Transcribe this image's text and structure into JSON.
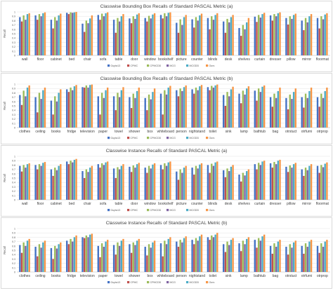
{
  "colors": {
    "Gupta13": "#4472c4",
    "CPMC": "#c0504d",
    "CPMCDD": "#9bbb59",
    "MCG": "#8064a2",
    "MCGDD": "#4bacc6",
    "Ours": "#f79646"
  },
  "chart_data": [
    {
      "type": "bar",
      "title": "Classwise Bounding Box Recalls of Standard PASCAL Metric (a)",
      "ylabel": "Recall",
      "ylim": [
        0,
        1
      ],
      "yticks": [
        "0",
        "0.1",
        "0.2",
        "0.3",
        "0.4",
        "0.5",
        "0.6",
        "0.7",
        "0.8",
        "0.9",
        "1"
      ],
      "grid": true,
      "legend": "bottom",
      "categories": [
        "wall",
        "floor",
        "cabinet",
        "bed",
        "chair",
        "sofa",
        "table",
        "door",
        "window",
        "bookshelf",
        "picture",
        "counter",
        "blinds",
        "desk",
        "shelves",
        "curtain",
        "dresser",
        "pillow",
        "mirror",
        "floormat"
      ],
      "series": [
        {
          "name": "Gupta13",
          "values": [
            0.88,
            0.92,
            0.82,
            0.98,
            0.73,
            0.93,
            0.82,
            0.85,
            0.86,
            0.93,
            0.75,
            0.83,
            0.86,
            0.78,
            0.63,
            0.89,
            0.92,
            0.86,
            0.8,
            0.86
          ]
        },
        {
          "name": "CPMC",
          "values": [
            0.78,
            0.82,
            0.62,
            0.95,
            0.54,
            0.82,
            0.52,
            0.74,
            0.78,
            0.85,
            0.52,
            0.64,
            0.6,
            0.52,
            0.45,
            0.77,
            0.8,
            0.71,
            0.58,
            0.62
          ]
        },
        {
          "name": "CPMCDD",
          "values": [
            0.92,
            0.95,
            0.88,
            0.99,
            0.8,
            0.96,
            0.86,
            0.9,
            0.91,
            0.97,
            0.83,
            0.88,
            0.9,
            0.84,
            0.7,
            0.93,
            0.95,
            0.9,
            0.86,
            0.9
          ]
        },
        {
          "name": "MCG",
          "values": [
            0.82,
            0.9,
            0.8,
            0.98,
            0.74,
            0.9,
            0.78,
            0.84,
            0.85,
            0.9,
            0.7,
            0.8,
            0.82,
            0.76,
            0.6,
            0.87,
            0.9,
            0.84,
            0.76,
            0.83
          ]
        },
        {
          "name": "MCGDD",
          "values": [
            0.95,
            0.97,
            0.92,
            0.99,
            0.85,
            0.97,
            0.9,
            0.94,
            0.94,
            0.98,
            0.88,
            0.92,
            0.93,
            0.88,
            0.76,
            0.95,
            0.97,
            0.93,
            0.9,
            0.94
          ]
        },
        {
          "name": "Ours",
          "values": [
            0.97,
            0.99,
            0.96,
            1.0,
            0.92,
            0.99,
            0.95,
            0.97,
            0.97,
            0.99,
            0.93,
            0.96,
            0.97,
            0.93,
            0.86,
            0.98,
            0.99,
            0.96,
            0.95,
            0.97
          ]
        }
      ]
    },
    {
      "type": "bar",
      "title": "Classwise Bounding Box Recalls of Standard PASCAL Metric (b)",
      "ylabel": "Recall",
      "ylim": [
        0,
        1
      ],
      "yticks": [
        "0",
        "0.1",
        "0.2",
        "0.3",
        "0.4",
        "0.5",
        "0.6",
        "0.7",
        "0.8",
        "0.9",
        "1"
      ],
      "grid": true,
      "legend": "bottom",
      "categories": [
        "clothes",
        "ceiling",
        "books",
        "fridge",
        "television",
        "paper",
        "towel",
        "shower",
        "box",
        "whiteboard",
        "person",
        "nightstand",
        "toilet",
        "sink",
        "lamp",
        "bathtub",
        "bag",
        "otrstuct",
        "otrfurni",
        "otrprop"
      ],
      "series": [
        {
          "name": "Gupta13",
          "values": [
            0.75,
            0.7,
            0.62,
            0.88,
            0.93,
            0.72,
            0.72,
            0.7,
            0.68,
            0.78,
            0.86,
            0.88,
            0.93,
            0.75,
            0.78,
            0.85,
            0.7,
            0.68,
            0.7,
            0.7
          ]
        },
        {
          "name": "CPMC",
          "values": [
            0.52,
            0.35,
            0.3,
            0.82,
            0.92,
            0.3,
            0.4,
            0.45,
            0.4,
            0.3,
            0.72,
            0.78,
            0.86,
            0.5,
            0.56,
            0.62,
            0.48,
            0.42,
            0.46,
            0.48
          ]
        },
        {
          "name": "CPMCDD",
          "values": [
            0.85,
            0.8,
            0.72,
            0.92,
            0.97,
            0.8,
            0.8,
            0.78,
            0.76,
            0.86,
            0.9,
            0.92,
            0.96,
            0.82,
            0.85,
            0.9,
            0.78,
            0.76,
            0.78,
            0.78
          ]
        },
        {
          "name": "MCG",
          "values": [
            0.72,
            0.66,
            0.6,
            0.86,
            0.92,
            0.68,
            0.7,
            0.68,
            0.65,
            0.76,
            0.84,
            0.86,
            0.92,
            0.72,
            0.76,
            0.82,
            0.68,
            0.66,
            0.68,
            0.68
          ]
        },
        {
          "name": "MCGDD",
          "values": [
            0.92,
            0.86,
            0.8,
            0.95,
            0.98,
            0.86,
            0.86,
            0.84,
            0.82,
            0.92,
            0.93,
            0.95,
            0.97,
            0.88,
            0.9,
            0.94,
            0.84,
            0.82,
            0.84,
            0.84
          ]
        },
        {
          "name": "Ours",
          "values": [
            0.97,
            0.92,
            0.88,
            0.98,
            0.99,
            0.92,
            0.93,
            0.92,
            0.9,
            0.96,
            0.97,
            0.98,
            0.99,
            0.94,
            0.95,
            0.97,
            0.92,
            0.9,
            0.92,
            0.92
          ]
        }
      ]
    },
    {
      "type": "bar",
      "title": "Classwise Instance Recalls of Standard PASCAL Metric (a)",
      "ylabel": "Recall",
      "ylim": [
        0,
        1
      ],
      "yticks": [
        "0",
        "0.1",
        "0.2",
        "0.3",
        "0.4",
        "0.5",
        "0.6",
        "0.7",
        "0.8",
        "0.9",
        "1"
      ],
      "grid": true,
      "legend": "bottom",
      "categories": [
        "wall",
        "floor",
        "cabinet",
        "bed",
        "chair",
        "sofa",
        "table",
        "door",
        "window",
        "bookshelf",
        "picture",
        "counter",
        "blinds",
        "desk",
        "shelves",
        "curtain",
        "dresser",
        "pillow",
        "mirror",
        "floormat"
      ],
      "series": [
        {
          "name": "Gupta13",
          "values": [
            0.78,
            0.8,
            0.7,
            0.88,
            0.66,
            0.82,
            0.72,
            0.76,
            0.74,
            0.8,
            0.65,
            0.74,
            0.8,
            0.68,
            0.58,
            0.82,
            0.84,
            0.76,
            0.7,
            0.78
          ]
        },
        {
          "name": "CPMC",
          "values": [
            0.65,
            0.7,
            0.55,
            0.82,
            0.5,
            0.74,
            0.5,
            0.64,
            0.62,
            0.7,
            0.46,
            0.58,
            0.62,
            0.52,
            0.42,
            0.7,
            0.74,
            0.64,
            0.55,
            0.62
          ]
        },
        {
          "name": "CPMCDD",
          "values": [
            0.8,
            0.82,
            0.74,
            0.9,
            0.7,
            0.84,
            0.75,
            0.79,
            0.78,
            0.84,
            0.7,
            0.78,
            0.83,
            0.72,
            0.62,
            0.85,
            0.87,
            0.79,
            0.74,
            0.8
          ]
        },
        {
          "name": "MCG",
          "values": [
            0.74,
            0.78,
            0.68,
            0.86,
            0.64,
            0.8,
            0.7,
            0.74,
            0.72,
            0.78,
            0.62,
            0.72,
            0.78,
            0.66,
            0.56,
            0.8,
            0.82,
            0.74,
            0.68,
            0.75
          ]
        },
        {
          "name": "MCGDD",
          "values": [
            0.82,
            0.85,
            0.78,
            0.92,
            0.74,
            0.86,
            0.78,
            0.82,
            0.81,
            0.86,
            0.74,
            0.81,
            0.86,
            0.76,
            0.66,
            0.88,
            0.9,
            0.82,
            0.78,
            0.83
          ]
        },
        {
          "name": "Ours",
          "values": [
            0.84,
            0.87,
            0.82,
            0.94,
            0.78,
            0.88,
            0.82,
            0.85,
            0.84,
            0.88,
            0.78,
            0.84,
            0.88,
            0.8,
            0.7,
            0.9,
            0.92,
            0.85,
            0.82,
            0.86
          ]
        }
      ]
    },
    {
      "type": "bar",
      "title": "Classwise Instance Recalls of Standard PASCAL Metric (b)",
      "ylabel": "Recall",
      "ylim": [
        0,
        1
      ],
      "yticks": [
        "0",
        "0.1",
        "0.2",
        "0.3",
        "0.4",
        "0.5",
        "0.6",
        "0.7",
        "0.8",
        "0.9",
        "1"
      ],
      "grid": true,
      "legend": "bottom",
      "categories": [
        "clothes",
        "ceiling",
        "books",
        "fridge",
        "television",
        "paper",
        "towel",
        "shower",
        "box",
        "whiteboard",
        "person",
        "nightstand",
        "toilet",
        "sink",
        "lamp",
        "bathtub",
        "bag",
        "otrstuct",
        "otrfurni",
        "otrprop"
      ],
      "series": [
        {
          "name": "Gupta13",
          "values": [
            0.62,
            0.58,
            0.55,
            0.72,
            0.8,
            0.6,
            0.62,
            0.64,
            0.58,
            0.66,
            0.7,
            0.74,
            0.8,
            0.64,
            0.66,
            0.74,
            0.6,
            0.58,
            0.6,
            0.6
          ]
        },
        {
          "name": "CPMC",
          "values": [
            0.44,
            0.36,
            0.3,
            0.64,
            0.78,
            0.34,
            0.4,
            0.44,
            0.38,
            0.36,
            0.58,
            0.64,
            0.74,
            0.46,
            0.48,
            0.56,
            0.42,
            0.4,
            0.42,
            0.44
          ]
        },
        {
          "name": "CPMCDD",
          "values": [
            0.68,
            0.64,
            0.6,
            0.76,
            0.84,
            0.66,
            0.68,
            0.68,
            0.64,
            0.72,
            0.74,
            0.78,
            0.84,
            0.7,
            0.72,
            0.78,
            0.66,
            0.64,
            0.66,
            0.66
          ]
        },
        {
          "name": "MCG",
          "values": [
            0.6,
            0.56,
            0.54,
            0.7,
            0.8,
            0.58,
            0.6,
            0.62,
            0.56,
            0.64,
            0.68,
            0.72,
            0.8,
            0.62,
            0.64,
            0.72,
            0.58,
            0.56,
            0.58,
            0.58
          ]
        },
        {
          "name": "MCGDD",
          "values": [
            0.72,
            0.68,
            0.64,
            0.8,
            0.86,
            0.7,
            0.72,
            0.72,
            0.68,
            0.76,
            0.78,
            0.82,
            0.86,
            0.74,
            0.76,
            0.82,
            0.7,
            0.68,
            0.7,
            0.7
          ]
        },
        {
          "name": "Ours",
          "values": [
            0.76,
            0.72,
            0.68,
            0.84,
            0.88,
            0.74,
            0.76,
            0.76,
            0.72,
            0.8,
            0.82,
            0.86,
            0.9,
            0.78,
            0.8,
            0.86,
            0.74,
            0.72,
            0.74,
            0.74
          ]
        }
      ]
    }
  ]
}
